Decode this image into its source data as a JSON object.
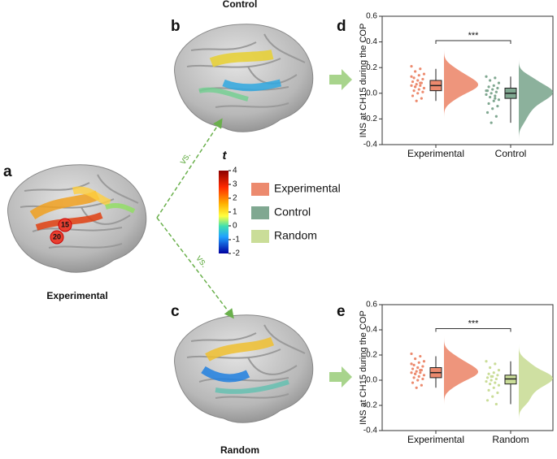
{
  "panel_labels": [
    "a",
    "b",
    "c",
    "d",
    "e"
  ],
  "brain_titles": {
    "a": "Experimental",
    "b": "Control",
    "c": "Random"
  },
  "badges": [
    "15",
    "20"
  ],
  "arrow_labels": [
    "vs.",
    "vs."
  ],
  "colorbar": {
    "title": "t",
    "lim": [
      -2,
      4
    ],
    "ticks": [
      4,
      3,
      2,
      1,
      0,
      -1,
      -2
    ]
  },
  "legend": [
    {
      "name": "Experimental",
      "color": "#ec8a6e"
    },
    {
      "name": "Control",
      "color": "#80a891"
    },
    {
      "name": "Random",
      "color": "#cadd98"
    }
  ],
  "chart_data": [
    {
      "type": "raincloud",
      "ylabel": "INS at CH15 during the COP",
      "ylim": [
        -0.4,
        0.6
      ],
      "yticks": [
        -0.4,
        -0.2,
        {
          "value": 0,
          "label": "0.0"
        },
        0.2,
        0.4,
        0.6
      ],
      "annotation": "***",
      "series": [
        {
          "name": "Experimental",
          "color": "#ec8a6e",
          "median": 0.06,
          "q1": 0.02,
          "q3": 0.1,
          "whisker_low": -0.06,
          "whisker_high": 0.19,
          "points": [
            0.21,
            0.19,
            0.17,
            0.15,
            0.14,
            0.12,
            0.11,
            0.1,
            0.09,
            0.08,
            0.07,
            0.06,
            0.06,
            0.05,
            0.04,
            0.03,
            0.02,
            0.01,
            0,
            -0.02,
            -0.04,
            -0.06,
            0.13,
            0.08,
            0.05
          ]
        },
        {
          "name": "Control",
          "color": "#80a891",
          "median": 0,
          "q1": -0.04,
          "q3": 0.04,
          "whisker_low": -0.23,
          "whisker_high": 0.13,
          "points": [
            0.13,
            0.12,
            0.1,
            0.08,
            0.06,
            0.05,
            0.04,
            0.03,
            0.02,
            0.01,
            0,
            -0.01,
            -0.02,
            -0.03,
            -0.05,
            -0.06,
            -0.08,
            -0.1,
            -0.12,
            -0.15,
            -0.18,
            -0.23,
            0.02,
            -0.04
          ]
        }
      ]
    },
    {
      "type": "raincloud",
      "ylabel": "INS at CH15 during the COP",
      "ylim": [
        -0.4,
        0.6
      ],
      "yticks": [
        -0.4,
        -0.2,
        {
          "value": 0,
          "label": "0.0"
        },
        0.2,
        0.4,
        0.6
      ],
      "annotation": "***",
      "series": [
        {
          "name": "Experimental",
          "color": "#ec8a6e",
          "median": 0.06,
          "q1": 0.02,
          "q3": 0.1,
          "whisker_low": -0.06,
          "whisker_high": 0.19,
          "points": [
            0.21,
            0.19,
            0.17,
            0.15,
            0.14,
            0.12,
            0.11,
            0.1,
            0.09,
            0.08,
            0.07,
            0.06,
            0.06,
            0.05,
            0.04,
            0.03,
            0.02,
            0.01,
            0,
            -0.02,
            -0.04,
            -0.06,
            0.13,
            0.08,
            0.05
          ]
        },
        {
          "name": "Random",
          "color": "#cadd98",
          "median": 0.01,
          "q1": -0.03,
          "q3": 0.04,
          "whisker_low": -0.19,
          "whisker_high": 0.15,
          "points": [
            0.15,
            0.13,
            0.1,
            0.08,
            0.06,
            0.05,
            0.04,
            0.03,
            0.02,
            0.01,
            0,
            -0.01,
            -0.02,
            -0.03,
            -0.04,
            -0.06,
            -0.08,
            -0.1,
            -0.13,
            -0.16,
            -0.19,
            0.03
          ]
        }
      ]
    }
  ]
}
